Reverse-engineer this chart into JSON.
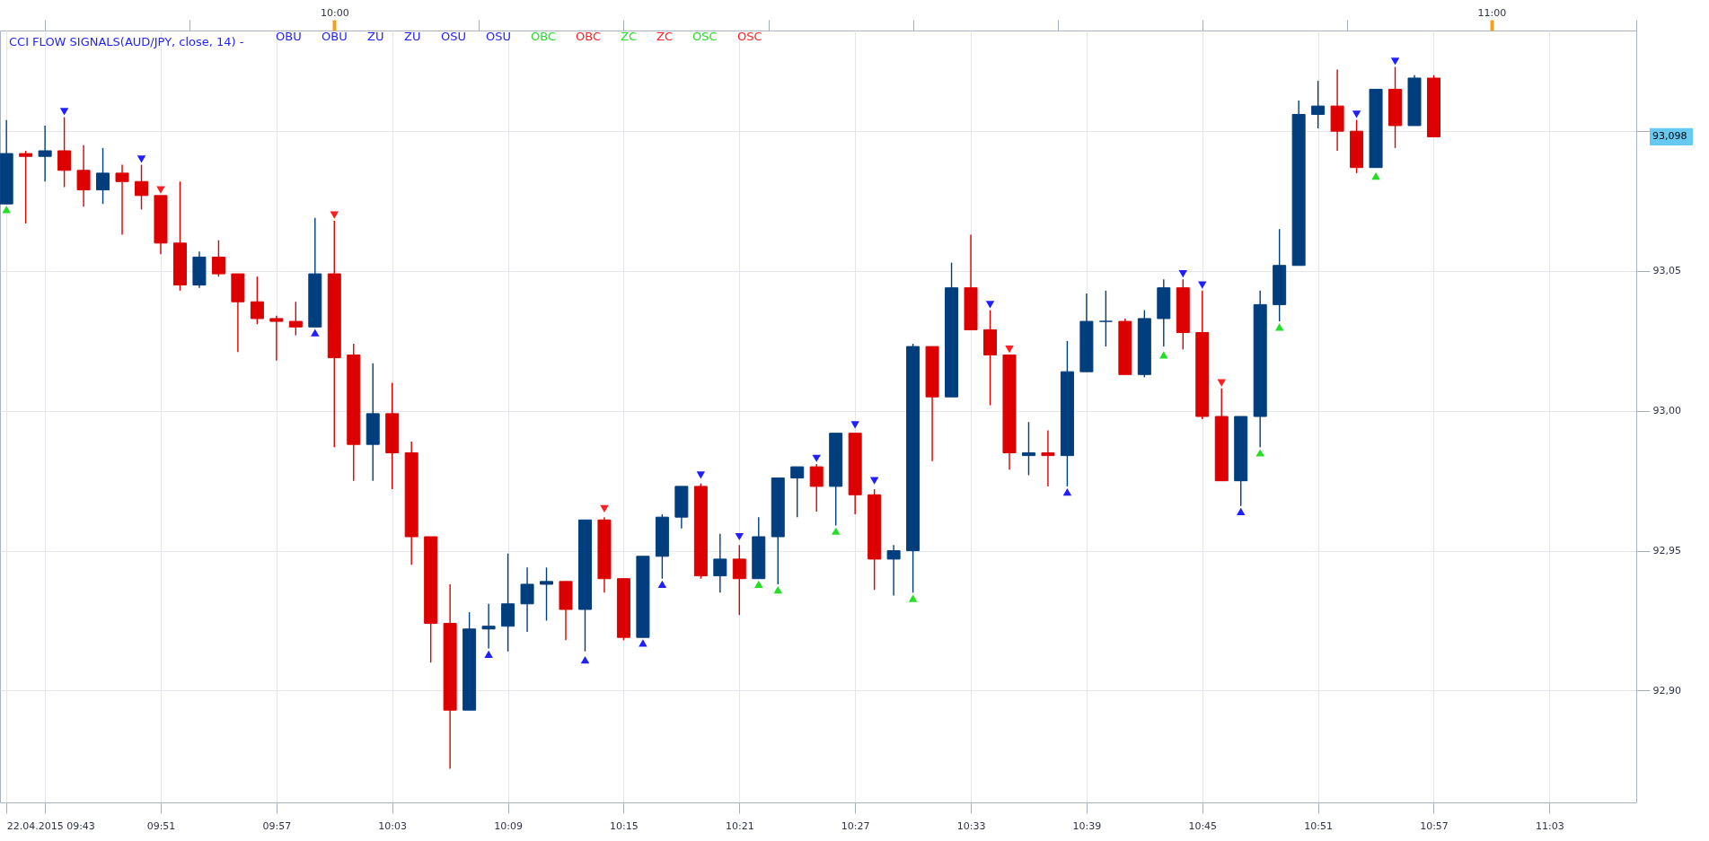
{
  "chart_data": {
    "type": "candlestick",
    "x": [
      "2015-04-22T09:43",
      "2015-04-22T09:44",
      "2015-04-22T09:45",
      "2015-04-22T09:46",
      "2015-04-22T09:47",
      "2015-04-22T09:48",
      "2015-04-22T09:49",
      "2015-04-22T09:50",
      "2015-04-22T09:51",
      "2015-04-22T09:52",
      "2015-04-22T09:53",
      "2015-04-22T09:54",
      "2015-04-22T09:55",
      "2015-04-22T09:56",
      "2015-04-22T09:57",
      "2015-04-22T09:58",
      "2015-04-22T09:59",
      "2015-04-22T10:00",
      "2015-04-22T10:01",
      "2015-04-22T10:02",
      "2015-04-22T10:03",
      "2015-04-22T10:04",
      "2015-04-22T10:05",
      "2015-04-22T10:06",
      "2015-04-22T10:07",
      "2015-04-22T10:08",
      "2015-04-22T10:09",
      "2015-04-22T10:10",
      "2015-04-22T10:11",
      "2015-04-22T10:12",
      "2015-04-22T10:13",
      "2015-04-22T10:14",
      "2015-04-22T10:15",
      "2015-04-22T10:16",
      "2015-04-22T10:17",
      "2015-04-22T10:18",
      "2015-04-22T10:19",
      "2015-04-22T10:20",
      "2015-04-22T10:21",
      "2015-04-22T10:22",
      "2015-04-22T10:23",
      "2015-04-22T10:24",
      "2015-04-22T10:25",
      "2015-04-22T10:26",
      "2015-04-22T10:27",
      "2015-04-22T10:28",
      "2015-04-22T10:29",
      "2015-04-22T10:30",
      "2015-04-22T10:31",
      "2015-04-22T10:32",
      "2015-04-22T10:33",
      "2015-04-22T10:34",
      "2015-04-22T10:35",
      "2015-04-22T10:36",
      "2015-04-22T10:37",
      "2015-04-22T10:38",
      "2015-04-22T10:39",
      "2015-04-22T10:40",
      "2015-04-22T10:41",
      "2015-04-22T10:42",
      "2015-04-22T10:43",
      "2015-04-22T10:44",
      "2015-04-22T10:45",
      "2015-04-22T10:46",
      "2015-04-22T10:47",
      "2015-04-22T10:48",
      "2015-04-22T10:49",
      "2015-04-22T10:50",
      "2015-04-22T10:51",
      "2015-04-22T10:52",
      "2015-04-22T10:53",
      "2015-04-22T10:54",
      "2015-04-22T10:55",
      "2015-04-22T10:56",
      "2015-04-22T10:57"
    ],
    "ohlc": [
      [
        93.074,
        93.104,
        93.074,
        93.092
      ],
      [
        93.092,
        93.093,
        93.067,
        93.091
      ],
      [
        93.091,
        93.102,
        93.082,
        93.093
      ],
      [
        93.093,
        93.105,
        93.08,
        93.086
      ],
      [
        93.086,
        93.095,
        93.073,
        93.079
      ],
      [
        93.079,
        93.094,
        93.074,
        93.085
      ],
      [
        93.085,
        93.088,
        93.063,
        93.082
      ],
      [
        93.082,
        93.088,
        93.072,
        93.077
      ],
      [
        93.077,
        93.077,
        93.056,
        93.06
      ],
      [
        93.06,
        93.082,
        93.043,
        93.045
      ],
      [
        93.045,
        93.057,
        93.044,
        93.055
      ],
      [
        93.055,
        93.061,
        93.048,
        93.049
      ],
      [
        93.049,
        93.049,
        93.021,
        93.039
      ],
      [
        93.039,
        93.048,
        93.031,
        93.033
      ],
      [
        93.033,
        93.034,
        93.018,
        93.032
      ],
      [
        93.032,
        93.039,
        93.027,
        93.03
      ],
      [
        93.03,
        93.069,
        93.03,
        93.049
      ],
      [
        93.049,
        93.068,
        92.987,
        93.019
      ],
      [
        93.02,
        93.024,
        92.975,
        92.988
      ],
      [
        92.988,
        93.017,
        92.975,
        92.999
      ],
      [
        92.999,
        93.01,
        92.972,
        92.985
      ],
      [
        92.985,
        92.989,
        92.945,
        92.955
      ],
      [
        92.955,
        92.955,
        92.91,
        92.924
      ],
      [
        92.924,
        92.938,
        92.872,
        92.893
      ],
      [
        92.893,
        92.928,
        92.893,
        92.922
      ],
      [
        92.922,
        92.931,
        92.915,
        92.923
      ],
      [
        92.923,
        92.949,
        92.914,
        92.931
      ],
      [
        92.931,
        92.944,
        92.921,
        92.938
      ],
      [
        92.938,
        92.944,
        92.925,
        92.939
      ],
      [
        92.939,
        92.939,
        92.918,
        92.929
      ],
      [
        92.929,
        92.961,
        92.914,
        92.961
      ],
      [
        92.961,
        92.962,
        92.935,
        92.94
      ],
      [
        92.94,
        92.94,
        92.918,
        92.919
      ],
      [
        92.919,
        92.948,
        92.919,
        92.948
      ],
      [
        92.948,
        92.963,
        92.94,
        92.962
      ],
      [
        92.962,
        92.973,
        92.958,
        92.973
      ],
      [
        92.973,
        92.974,
        92.94,
        92.941
      ],
      [
        92.941,
        92.956,
        92.935,
        92.947
      ],
      [
        92.947,
        92.952,
        92.927,
        92.94
      ],
      [
        92.94,
        92.962,
        92.94,
        92.955
      ],
      [
        92.955,
        92.976,
        92.938,
        92.976
      ],
      [
        92.976,
        92.98,
        92.962,
        92.98
      ],
      [
        92.98,
        92.981,
        92.964,
        92.973
      ],
      [
        92.973,
        92.992,
        92.959,
        92.992
      ],
      [
        92.992,
        92.992,
        92.963,
        92.97
      ],
      [
        92.97,
        92.972,
        92.936,
        92.947
      ],
      [
        92.947,
        92.952,
        92.934,
        92.95
      ],
      [
        92.95,
        93.024,
        92.935,
        93.023
      ],
      [
        93.023,
        93.023,
        92.982,
        93.005
      ],
      [
        93.005,
        93.053,
        93.005,
        93.044
      ],
      [
        93.044,
        93.063,
        93.029,
        93.029
      ],
      [
        93.029,
        93.036,
        93.002,
        93.02
      ],
      [
        93.02,
        93.02,
        92.979,
        92.985
      ],
      [
        92.984,
        92.996,
        92.977,
        92.985
      ],
      [
        92.985,
        92.993,
        92.973,
        92.984
      ],
      [
        92.984,
        93.025,
        92.973,
        93.014
      ],
      [
        93.014,
        93.042,
        93.014,
        93.032
      ],
      [
        93.032,
        93.043,
        93.023,
        93.032
      ],
      [
        93.032,
        93.033,
        93.013,
        93.013
      ],
      [
        93.013,
        93.036,
        93.012,
        93.033
      ],
      [
        93.033,
        93.047,
        93.023,
        93.044
      ],
      [
        93.044,
        93.047,
        93.022,
        93.028
      ],
      [
        93.028,
        93.043,
        92.997,
        92.998
      ],
      [
        92.998,
        93.008,
        92.975,
        92.975
      ],
      [
        92.975,
        92.998,
        92.966,
        92.998
      ],
      [
        92.998,
        93.043,
        92.987,
        93.038
      ],
      [
        93.038,
        93.065,
        93.032,
        93.052
      ],
      [
        93.052,
        93.111,
        93.052,
        93.106
      ],
      [
        93.106,
        93.118,
        93.101,
        93.109
      ],
      [
        93.109,
        93.122,
        93.093,
        93.1
      ],
      [
        93.1,
        93.104,
        93.085,
        93.087
      ],
      [
        93.087,
        93.115,
        93.087,
        93.115
      ],
      [
        93.115,
        93.123,
        93.094,
        93.102
      ],
      [
        93.102,
        93.12,
        93.102,
        93.119
      ],
      [
        93.119,
        93.12,
        93.098,
        93.098
      ]
    ],
    "colors": [
      "#003e7e",
      "#dc0000",
      "#003e7e",
      "#dc0000",
      "#dc0000",
      "#003e7e",
      "#dc0000",
      "#dc0000",
      "#dc0000",
      "#dc0000",
      "#003e7e",
      "#dc0000",
      "#dc0000",
      "#dc0000",
      "#dc0000",
      "#dc0000",
      "#003e7e",
      "#dc0000",
      "#dc0000",
      "#003e7e",
      "#dc0000",
      "#dc0000",
      "#dc0000",
      "#dc0000",
      "#003e7e",
      "#003e7e",
      "#003e7e",
      "#003e7e",
      "#003e7e",
      "#dc0000",
      "#003e7e",
      "#dc0000",
      "#dc0000",
      "#003e7e",
      "#003e7e",
      "#003e7e",
      "#dc0000",
      "#003e7e",
      "#dc0000",
      "#003e7e",
      "#003e7e",
      "#003e7e",
      "#dc0000",
      "#003e7e",
      "#dc0000",
      "#dc0000",
      "#003e7e",
      "#003e7e",
      "#dc0000",
      "#003e7e",
      "#dc0000",
      "#dc0000",
      "#dc0000",
      "#003e7e",
      "#dc0000",
      "#003e7e",
      "#003e7e",
      "#003e7e",
      "#dc0000",
      "#003e7e",
      "#003e7e",
      "#dc0000",
      "#dc0000",
      "#dc0000",
      "#003e7e",
      "#003e7e",
      "#003e7e",
      "#003e7e",
      "#003e7e",
      "#dc0000",
      "#dc0000",
      "#003e7e",
      "#dc0000",
      "#003e7e",
      "#dc0000"
    ],
    "series": [
      {
        "name": "OBU",
        "type": "scatter",
        "color": "#1f1fff",
        "x": [
          "2015-04-22T09:46",
          "2015-04-22T09:50",
          "2015-04-22T09:59",
          "2015-04-22T10:08",
          "2015-04-22T10:13",
          "2015-04-22T10:16",
          "2015-04-22T10:17",
          "2015-04-22T10:19",
          "2015-04-22T10:21",
          "2015-04-22T10:25",
          "2015-04-22T10:27",
          "2015-04-22T10:28",
          "2015-04-22T10:34",
          "2015-04-22T10:38",
          "2015-04-22T10:44",
          "2015-04-22T10:45",
          "2015-04-22T10:47",
          "2015-04-22T10:53",
          "2015-04-22T10:55"
        ],
        "values": [
          93.107,
          93.09,
          93.028,
          92.913,
          92.911,
          92.917,
          92.938,
          92.977,
          92.955,
          92.983,
          92.995,
          92.975,
          93.038,
          92.971,
          93.049,
          93.045,
          92.964,
          93.106,
          93.125
        ]
      },
      {
        "name": "OBU",
        "type": "scatter",
        "color": "#1f1fff",
        "values": [
          null,
          null,
          null,
          null,
          null,
          null,
          null,
          null,
          null,
          null,
          null,
          null,
          null,
          null,
          null,
          null,
          null,
          null,
          null,
          null,
          null,
          null,
          null,
          null,
          null,
          null,
          null,
          null,
          null,
          null,
          null,
          null,
          null,
          null,
          null,
          null,
          null,
          null,
          null,
          null,
          null,
          null,
          null,
          null,
          null,
          null,
          null,
          null,
          null,
          null,
          null,
          null,
          null,
          null,
          null,
          null,
          null,
          null,
          null,
          null,
          null,
          null,
          null,
          null,
          null,
          null,
          null,
          null,
          null,
          null,
          null,
          null,
          null,
          null,
          null
        ]
      },
      {
        "name": "ZU",
        "type": "scatter",
        "color": "#1f1fff",
        "values": [
          null,
          null,
          null,
          null,
          null,
          null,
          null,
          null,
          null,
          null,
          null,
          null,
          null,
          null,
          null,
          null,
          null,
          null,
          null,
          null,
          null,
          null,
          null,
          null,
          null,
          null,
          null,
          null,
          null,
          null,
          null,
          null,
          null,
          null,
          null,
          null,
          null,
          null,
          null,
          null,
          null,
          null,
          null,
          null,
          null,
          null,
          null,
          null,
          null,
          null,
          null,
          null,
          null,
          null,
          null,
          null,
          null,
          null,
          null,
          null,
          null,
          null,
          null,
          null,
          null,
          null,
          null,
          null,
          null,
          null,
          null,
          null,
          null,
          null,
          null
        ]
      },
      {
        "name": "ZU",
        "type": "scatter",
        "color": "#1f1fff",
        "values": [
          null,
          null,
          null,
          null,
          null,
          null,
          null,
          null,
          null,
          null,
          null,
          null,
          null,
          null,
          null,
          null,
          null,
          null,
          null,
          null,
          null,
          null,
          null,
          null,
          null,
          null,
          null,
          null,
          null,
          null,
          null,
          null,
          null,
          null,
          null,
          null,
          null,
          null,
          null,
          null,
          null,
          null,
          null,
          null,
          null,
          null,
          null,
          null,
          null,
          null,
          null,
          null,
          null,
          null,
          null,
          null,
          null,
          null,
          null,
          null,
          null,
          null,
          null,
          null,
          null,
          null,
          null,
          null,
          null,
          null,
          null,
          null,
          null,
          null,
          null
        ]
      },
      {
        "name": "OSU",
        "type": "scatter",
        "color": "#1f1fff",
        "values": [
          null,
          null,
          null,
          null,
          null,
          null,
          null,
          null,
          null,
          null,
          null,
          null,
          null,
          null,
          null,
          null,
          null,
          null,
          null,
          null,
          null,
          null,
          null,
          null,
          null,
          null,
          null,
          null,
          null,
          null,
          null,
          null,
          null,
          null,
          null,
          null,
          null,
          null,
          null,
          null,
          null,
          null,
          null,
          null,
          null,
          null,
          null,
          null,
          null,
          null,
          null,
          null,
          null,
          null,
          null,
          null,
          null,
          null,
          null,
          null,
          null,
          null,
          null,
          null,
          null,
          null,
          null,
          null,
          null,
          null,
          null,
          null,
          null,
          null,
          null
        ]
      },
      {
        "name": "OSU",
        "type": "scatter",
        "color": "#1f1fff",
        "values": [
          null,
          null,
          null,
          null,
          null,
          null,
          null,
          null,
          null,
          null,
          null,
          null,
          null,
          null,
          null,
          null,
          null,
          null,
          null,
          null,
          null,
          null,
          null,
          null,
          null,
          null,
          null,
          null,
          null,
          null,
          null,
          null,
          null,
          null,
          null,
          null,
          null,
          null,
          null,
          null,
          null,
          null,
          null,
          null,
          null,
          null,
          null,
          null,
          null,
          null,
          null,
          null,
          null,
          null,
          null,
          null,
          null,
          null,
          null,
          null,
          null,
          null,
          null,
          null,
          null,
          null,
          null,
          null,
          null,
          null,
          null,
          null,
          null,
          null,
          null
        ]
      },
      {
        "name": "OBC",
        "type": "scatter",
        "color": "#22e022",
        "values": [
          null,
          null,
          null,
          null,
          null,
          null,
          null,
          null,
          null,
          null,
          null,
          null,
          null,
          null,
          null,
          null,
          null,
          null,
          null,
          null,
          null,
          null,
          null,
          null,
          null,
          null,
          null,
          null,
          null,
          null,
          null,
          null,
          null,
          null,
          null,
          null,
          null,
          null,
          null,
          null,
          null,
          null,
          null,
          null,
          null,
          null,
          null,
          null,
          null,
          null,
          null,
          null,
          null,
          null,
          null,
          null,
          null,
          null,
          null,
          null,
          null,
          null,
          null,
          null,
          null,
          null,
          null,
          null,
          null,
          null,
          null,
          null,
          null,
          null,
          null
        ]
      },
      {
        "name": "OBC",
        "type": "scatter",
        "color": "#ff1f1f",
        "values": [
          null,
          null,
          null,
          null,
          null,
          null,
          null,
          null,
          null,
          null,
          null,
          null,
          null,
          null,
          null,
          null,
          null,
          null,
          null,
          null,
          null,
          null,
          null,
          null,
          null,
          null,
          null,
          null,
          null,
          null,
          null,
          null,
          null,
          null,
          null,
          null,
          null,
          null,
          null,
          null,
          null,
          null,
          null,
          null,
          null,
          null,
          null,
          null,
          null,
          null,
          null,
          null,
          null,
          null,
          null,
          null,
          null,
          null,
          null,
          null,
          null,
          null,
          null,
          null,
          null,
          null,
          null,
          null,
          null,
          null,
          null,
          null,
          null,
          null,
          null
        ]
      },
      {
        "name": "ZC",
        "type": "scatter",
        "color": "#22e022",
        "x": [
          "2015-04-22T09:43",
          "2015-04-22T10:22",
          "2015-04-22T10:23",
          "2015-04-22T10:26",
          "2015-04-22T10:30",
          "2015-04-22T10:43",
          "2015-04-22T10:48",
          "2015-04-22T10:49",
          "2015-04-22T10:54"
        ],
        "values": [
          93.072,
          92.938,
          92.936,
          92.957,
          92.933,
          93.02,
          92.985,
          93.03,
          93.084
        ]
      },
      {
        "name": "ZC",
        "type": "scatter",
        "color": "#ff1f1f",
        "x": [
          "2015-04-22T09:51",
          "2015-04-22T10:00",
          "2015-04-22T10:14",
          "2015-04-22T10:35",
          "2015-04-22T10:46"
        ],
        "values": [
          93.079,
          93.07,
          92.965,
          93.022,
          93.01
        ]
      },
      {
        "name": "OSC",
        "type": "scatter",
        "color": "#22e022",
        "values": [
          null,
          null,
          null,
          null,
          null,
          null,
          null,
          null,
          null,
          null,
          null,
          null,
          null,
          null,
          null,
          null,
          null,
          null,
          null,
          null,
          null,
          null,
          null,
          null,
          null,
          null,
          null,
          null,
          null,
          null,
          null,
          null,
          null,
          null,
          null,
          null,
          null,
          null,
          null,
          null,
          null,
          null,
          null,
          null,
          null,
          null,
          null,
          null,
          null,
          null,
          null,
          null,
          null,
          null,
          null,
          null,
          null,
          null,
          null,
          null,
          null,
          null,
          null,
          null,
          null,
          null,
          null,
          null,
          null,
          null,
          null,
          null,
          null,
          null,
          null
        ]
      },
      {
        "name": "OSC",
        "type": "scatter",
        "color": "#ff1f1f",
        "values": [
          null,
          null,
          null,
          null,
          null,
          null,
          null,
          null,
          null,
          null,
          null,
          null,
          null,
          null,
          null,
          null,
          null,
          null,
          null,
          null,
          null,
          null,
          null,
          null,
          null,
          null,
          null,
          null,
          null,
          null,
          null,
          null,
          null,
          null,
          null,
          null,
          null,
          null,
          null,
          null,
          null,
          null,
          null,
          null,
          null,
          null,
          null,
          null,
          null,
          null,
          null,
          null,
          null,
          null,
          null,
          null,
          null,
          null,
          null,
          null,
          null,
          null,
          null,
          null,
          null,
          null,
          null,
          null,
          null,
          null,
          null,
          null,
          null,
          null,
          null
        ]
      }
    ],
    "legend_title": "CCI FLOW SIGNALS(AUD/JPY, close, 14) -",
    "legend": "top left",
    "marker": "triangle",
    "xlim": [
      "2015-04-22T09:42:40",
      "2015-04-22T11:07:30"
    ],
    "xticks": [
      {
        "value": "2015-04-22T09:43",
        "label": "22.04.2015 09:43"
      },
      {
        "value": "2015-04-22T09:45",
        "label": null
      },
      {
        "value": "2015-04-22T09:51",
        "label": "09:51"
      },
      {
        "value": "2015-04-22T09:57",
        "label": "09:57"
      },
      {
        "value": "2015-04-22T10:03",
        "label": "10:03"
      },
      {
        "value": "2015-04-22T10:09",
        "label": "10:09"
      },
      {
        "value": "2015-04-22T10:15",
        "label": "10:15"
      },
      {
        "value": "2015-04-22T10:21",
        "label": "10:21"
      },
      {
        "value": "2015-04-22T10:27",
        "label": "10:27"
      },
      {
        "value": "2015-04-22T10:33",
        "label": "10:33"
      },
      {
        "value": "2015-04-22T10:39",
        "label": "10:39"
      },
      {
        "value": "2015-04-22T10:45",
        "label": "10:45"
      },
      {
        "value": "2015-04-22T10:51",
        "label": "10:51"
      },
      {
        "value": "2015-04-22T10:57",
        "label": "10:57"
      },
      {
        "value": "2015-04-22T11:03",
        "label": "11:03"
      }
    ],
    "x2lim": [
      "2015-04-22T09:42:40",
      "2015-04-22T11:07:30"
    ],
    "x2ticks": [
      {
        "value": "2015-04-22T09:45",
        "label": null
      },
      {
        "value": "2015-04-22T09:52:30",
        "label": null
      },
      {
        "value": "2015-04-22T10:00",
        "label": "10:00"
      },
      {
        "value": "2015-04-22T10:07:30",
        "label": null
      },
      {
        "value": "2015-04-22T10:15",
        "label": null
      },
      {
        "value": "2015-04-22T10:22:30",
        "label": null
      },
      {
        "value": "2015-04-22T10:30",
        "label": null
      },
      {
        "value": "2015-04-22T10:37:30",
        "label": null
      },
      {
        "value": "2015-04-22T10:45",
        "label": null
      },
      {
        "value": "2015-04-22T10:52:30",
        "label": null
      },
      {
        "value": "2015-04-22T11:00",
        "label": "11:00"
      },
      {
        "value": "2015-04-22T11:07:30",
        "label": null
      }
    ],
    "ylim": [
      92.86,
      93.136
    ],
    "yticks": [
      {
        "value": 92.9,
        "label": "92,90"
      },
      {
        "value": 92.95,
        "label": "92,95"
      },
      {
        "value": 93,
        "label": "93,00"
      },
      {
        "value": 93.05,
        "label": "93,05"
      },
      {
        "value": 93.1,
        "label": null
      }
    ],
    "grid": true,
    "annotations": [
      "93,098"
    ]
  }
}
